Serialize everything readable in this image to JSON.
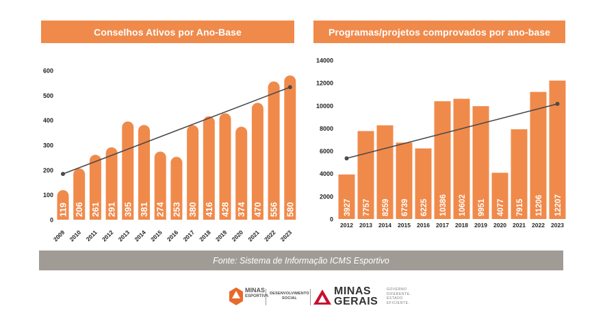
{
  "colors": {
    "bar": "#f08a4b",
    "header": "#f08a4b",
    "trend": "#4a4a4a",
    "source_bg": "#a19b96"
  },
  "chart_data": [
    {
      "type": "bar",
      "title": "Conselhos Ativos por Ano-Base",
      "categories": [
        "2009",
        "2010",
        "2011",
        "2012",
        "2013",
        "2014",
        "2015",
        "2016",
        "2017",
        "2018",
        "2019",
        "2020",
        "2021",
        "2022",
        "2023"
      ],
      "values": [
        119,
        206,
        261,
        291,
        395,
        381,
        274,
        253,
        380,
        416,
        428,
        374,
        470,
        556,
        580
      ],
      "ylim": [
        0,
        600
      ],
      "yticks": [
        0,
        100,
        200,
        300,
        400,
        500,
        600
      ],
      "trendline": {
        "start": [
          2009,
          184
        ],
        "end": [
          2023,
          533
        ]
      },
      "xlabel": "",
      "ylabel": ""
    },
    {
      "type": "bar",
      "title": "Programas/projetos comprovados por ano-base",
      "categories": [
        "2012",
        "2013",
        "2014",
        "2015",
        "2016",
        "2017",
        "2018",
        "2019",
        "2020",
        "2021",
        "2022",
        "2023"
      ],
      "values": [
        3927,
        7757,
        8259,
        6739,
        6225,
        10386,
        10602,
        9951,
        4077,
        7915,
        11206,
        12207
      ],
      "ylim": [
        0,
        14000
      ],
      "yticks": [
        0,
        2000,
        4000,
        6000,
        8000,
        10000,
        12000,
        14000
      ],
      "trendline": {
        "start": [
          2012,
          5350
        ],
        "end": [
          2023,
          10150
        ]
      },
      "xlabel": "",
      "ylabel": ""
    }
  ],
  "footer": {
    "source": "Fonte: Sistema de Informação ICMS Esportivo"
  },
  "logos": {
    "minas_esportiva_line1": "MINAS",
    "minas_esportiva_line2": "ESPORTIVA",
    "desenvolvimento_line1": "DESENVOLVIMENTO",
    "desenvolvimento_line2": "SOCIAL",
    "minas_gerais_line1": "MINAS",
    "minas_gerais_line2": "GERAIS",
    "gov_line1": "GOVERNO",
    "gov_line2": "DIFERENTE.",
    "gov_line3": "ESTADO",
    "gov_line4": "EFICIENTE."
  }
}
